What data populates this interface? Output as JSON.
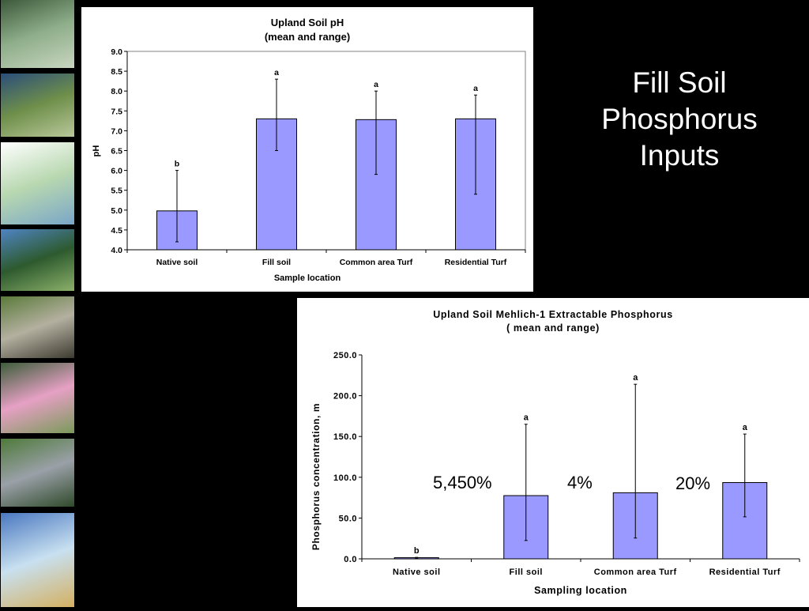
{
  "slide": {
    "title_lines": [
      "Fill Soil",
      "Phosphorus",
      "Inputs"
    ]
  },
  "thumbnails": [
    {
      "name": "algae-water-photo",
      "colors": [
        "#3c5a3a",
        "#8fae8a",
        "#c8d6c0"
      ]
    },
    {
      "name": "pond-vegetation-photo",
      "colors": [
        "#2a4d7a",
        "#6e8f4a",
        "#b9c79a"
      ]
    },
    {
      "name": "site-map-image",
      "colors": [
        "#ffffff",
        "#b8d8b0",
        "#7aa6c8"
      ]
    },
    {
      "name": "lake-landscape-photo",
      "colors": [
        "#4f84c4",
        "#2d5a2e",
        "#8cb06a"
      ]
    },
    {
      "name": "soil-sampling-photo",
      "colors": [
        "#5a7a3a",
        "#b4b0a0",
        "#3d3a30"
      ]
    },
    {
      "name": "water-lily-photo",
      "colors": [
        "#3c5d3a",
        "#e6a0c4",
        "#7a9a5a"
      ]
    },
    {
      "name": "fish-on-grass-photo",
      "colors": [
        "#4e7a3a",
        "#9aa0a8",
        "#2f4a2a"
      ]
    },
    {
      "name": "water-sample-jar-photo",
      "colors": [
        "#4a78c0",
        "#c8e0f0",
        "#d4b060"
      ]
    }
  ],
  "chart_data": [
    {
      "type": "bar",
      "title": "Upland Soil pH",
      "subtitle": "(mean and range)",
      "xlabel": "Sample location",
      "ylabel": "pH",
      "ylim": [
        4.0,
        9.0
      ],
      "yticks": [
        "4.0",
        "4.5",
        "5.0",
        "5.5",
        "6.0",
        "6.5",
        "7.0",
        "7.5",
        "8.0",
        "8.5",
        "9.0"
      ],
      "categories": [
        "Native soil",
        "Fill soil",
        "Common area Turf",
        "Residential Turf"
      ],
      "values": [
        4.98,
        7.3,
        7.28,
        7.3
      ],
      "ranges": [
        [
          4.2,
          6.0
        ],
        [
          6.5,
          8.3
        ],
        [
          5.9,
          8.0
        ],
        [
          5.4,
          7.9
        ]
      ],
      "labels": [
        "b",
        "a",
        "a",
        "a"
      ],
      "bar_color": "#9999ff",
      "grid": false
    },
    {
      "type": "bar",
      "title": "Upland Soil Mehlich-1 Extractable Phosphorus",
      "subtitle": "( mean and range)",
      "xlabel": "Sampling location",
      "ylabel": "Phosphorus concentration, m",
      "ylim": [
        0.0,
        250.0
      ],
      "yticks": [
        "0.0",
        "50.0",
        "100.0",
        "150.0",
        "200.0",
        "250.0"
      ],
      "categories": [
        "Native soil",
        "Fill soil",
        "Common area Turf",
        "Residential Turf"
      ],
      "values": [
        1.4,
        77.5,
        81.0,
        93.5
      ],
      "ranges": [
        [
          0.8,
          1.8
        ],
        [
          22.5,
          165.0
        ],
        [
          25.5,
          214.0
        ],
        [
          51.5,
          153.0
        ]
      ],
      "labels": [
        "b",
        "a",
        "a",
        "a"
      ],
      "bar_color": "#9999ff",
      "grid": false
    }
  ],
  "callouts": [
    "5,450%",
    "4%",
    "20%"
  ]
}
